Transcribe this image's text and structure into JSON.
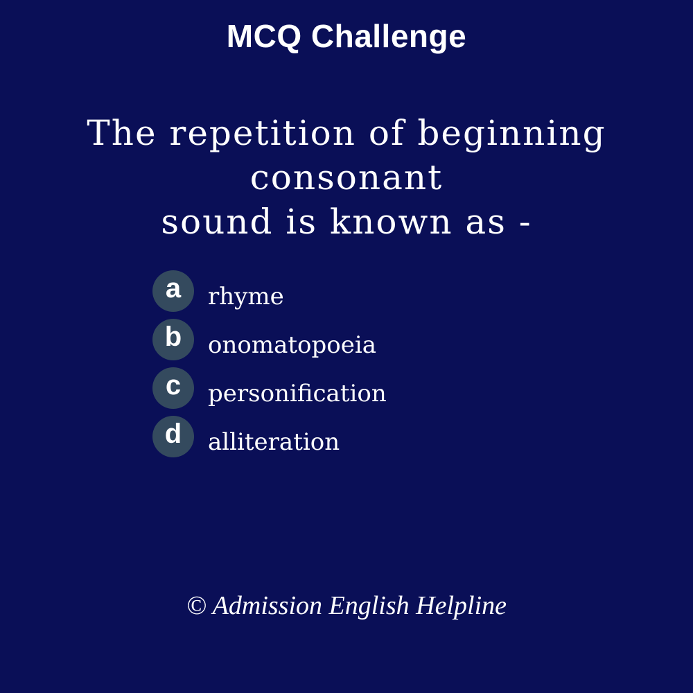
{
  "header": {
    "title": "MCQ Challenge"
  },
  "question": {
    "line1": "The repetition of beginning consonant",
    "line2": "sound is known as -"
  },
  "options": [
    {
      "letter": "a",
      "text": "rhyme"
    },
    {
      "letter": "b",
      "text": "onomatopoeia"
    },
    {
      "letter": "c",
      "text": "personification"
    },
    {
      "letter": "d",
      "text": "alliteration"
    }
  ],
  "footer": {
    "copyright": "© Admission English Helpline"
  },
  "colors": {
    "background": "#0a0f57",
    "badge": "#344a5e",
    "text": "#ffffff"
  }
}
